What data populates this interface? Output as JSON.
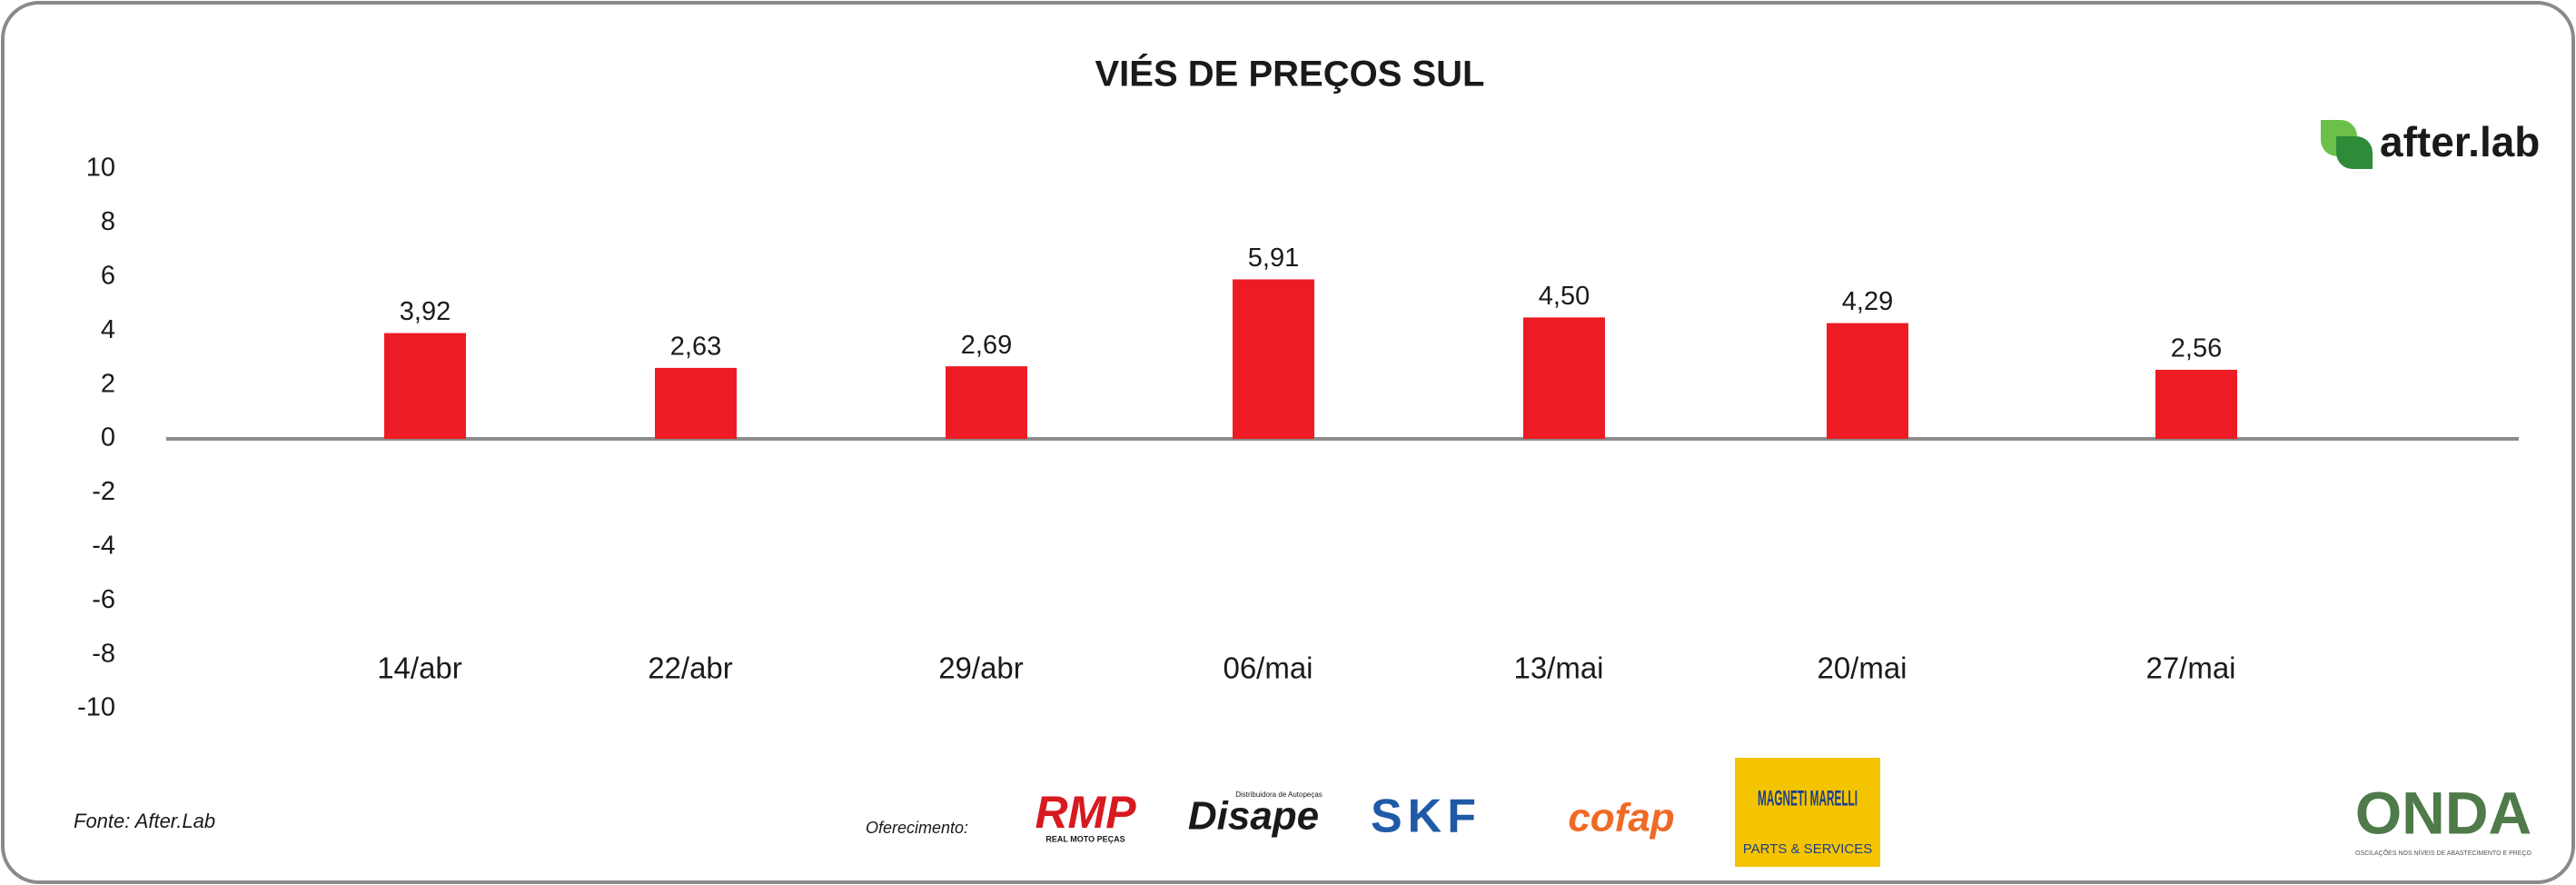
{
  "chart_data": {
    "type": "bar",
    "title": "VIÉS DE PREÇOS SUL",
    "categories": [
      "14/abr",
      "22/abr",
      "29/abr",
      "06/mai",
      "13/mai",
      "20/mai",
      "27/mai"
    ],
    "values": [
      3.92,
      2.63,
      2.69,
      5.91,
      4.5,
      4.29,
      2.56
    ],
    "value_labels": [
      "3,92",
      "2,63",
      "2,69",
      "5,91",
      "4,50",
      "4,29",
      "2,56"
    ],
    "color": "#ed1c24",
    "ylim": [
      -10,
      10
    ],
    "yticks": [
      10,
      8,
      6,
      4,
      2,
      0,
      -2,
      -4,
      -6,
      -8,
      -10
    ]
  },
  "source": "Fonte: After.Lab",
  "sponsor_label": "Oferecimento:",
  "brand": "after.lab",
  "sponsors": [
    {
      "name": "RMP",
      "tagline": "REAL MOTO PEÇAS"
    },
    {
      "name": "Disape",
      "tagline": "Distribuidora de Autopeças"
    },
    {
      "name": "SKF"
    },
    {
      "name": "cofap"
    },
    {
      "name": "MAGNETI MARELLI",
      "tagline": "PARTS & SERVICES"
    }
  ],
  "onda": {
    "name": "ONDA",
    "tagline": "OSCILAÇÕES NOS NÍVEIS DE ABASTECIMENTO E PREÇO"
  }
}
